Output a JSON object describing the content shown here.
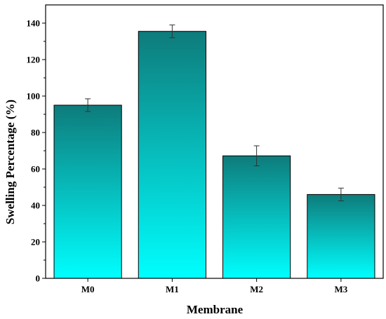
{
  "chart_data": {
    "type": "bar",
    "title": "",
    "xlabel": "Membrane",
    "ylabel": "Swelling Percentage (%)",
    "categories": [
      "M0",
      "M1",
      "M2",
      "M3"
    ],
    "values": [
      95.0,
      135.5,
      67.2,
      46.0
    ],
    "errors": [
      3.5,
      3.5,
      5.5,
      3.5
    ],
    "ylim": [
      0,
      150
    ],
    "yticks": [
      0,
      20,
      40,
      60,
      80,
      100,
      120,
      140
    ],
    "grid": false,
    "legend": "none",
    "colors": {
      "bar_top": "#0e7b7b",
      "bar_bottom": "#00ffff",
      "bar_edge": "#000000",
      "axis": "#000000"
    }
  }
}
